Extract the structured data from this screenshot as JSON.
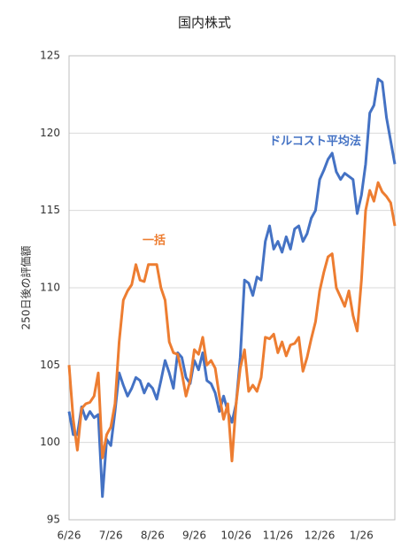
{
  "chart_data": {
    "type": "line",
    "title": "国内株式",
    "y_label": "250日後の評価額",
    "categories": [
      "6/26",
      null,
      null,
      null,
      null,
      null,
      null,
      null,
      null,
      null,
      "7/26",
      null,
      null,
      null,
      null,
      null,
      null,
      null,
      null,
      null,
      "8/26",
      null,
      null,
      null,
      null,
      null,
      null,
      null,
      null,
      null,
      "9/26",
      null,
      null,
      null,
      null,
      null,
      null,
      null,
      null,
      null,
      "10/26",
      null,
      null,
      null,
      null,
      null,
      null,
      null,
      null,
      null,
      "11/26",
      null,
      null,
      null,
      null,
      null,
      null,
      null,
      null,
      null,
      "12/26",
      null,
      null,
      null,
      null,
      null,
      null,
      null,
      null,
      null,
      "1/26",
      null,
      null,
      null,
      null,
      null,
      null,
      null,
      null
    ],
    "series": [
      {
        "name": "ドルコスト平均法",
        "color": "#4472c4",
        "values": [
          102,
          100.5,
          100.5,
          102.3,
          101.5,
          102,
          101.6,
          101.8,
          96.5,
          100.2,
          99.8,
          102,
          104.5,
          103.7,
          103,
          103.5,
          104.2,
          104,
          103.2,
          103.8,
          103.5,
          102.8,
          104,
          105.3,
          104.5,
          103.5,
          105.8,
          105.5,
          104.2,
          103.8,
          105.3,
          104.7,
          105.8,
          104,
          103.8,
          103.2,
          102,
          103,
          102,
          101.3,
          102.5,
          105.5,
          110.5,
          110.3,
          109.5,
          110.7,
          110.5,
          113,
          114,
          112.5,
          113,
          112.3,
          113.3,
          112.5,
          113.8,
          114,
          113,
          113.5,
          114.5,
          115,
          117,
          117.6,
          118.3,
          118.7,
          117.5,
          117,
          117.4,
          117.2,
          117,
          114.8,
          116,
          118,
          121.3,
          121.8,
          123.5,
          123.3,
          121,
          119.5,
          118
        ]
      },
      {
        "name": "一括",
        "color": "#ed7d31",
        "values": [
          105,
          101.5,
          99.5,
          102.2,
          102.5,
          102.6,
          103,
          104.5,
          99,
          100.5,
          101,
          102.5,
          106.5,
          109.2,
          109.8,
          110.2,
          111.5,
          110.5,
          110.4,
          111.5,
          111.5,
          111.5,
          110,
          109.2,
          106.5,
          105.8,
          105.7,
          104.5,
          103,
          104,
          106,
          105.7,
          106.8,
          105,
          105.3,
          104.8,
          103,
          101.5,
          102.5,
          98.8,
          102.5,
          104.8,
          106,
          103.3,
          103.7,
          103.3,
          104.2,
          106.8,
          106.7,
          107,
          105.8,
          106.5,
          105.6,
          106.3,
          106.4,
          106.8,
          104.6,
          105.5,
          106.7,
          107.8,
          109.8,
          111,
          112,
          112.2,
          110,
          109.4,
          108.8,
          109.8,
          108.2,
          107.2,
          110.5,
          115,
          116.3,
          115.6,
          116.8,
          116.2,
          115.9,
          115.5,
          114
        ]
      }
    ],
    "ylim": [
      95,
      125
    ],
    "yticks": [
      95,
      100,
      105,
      110,
      115,
      120,
      125
    ],
    "grid": true
  }
}
